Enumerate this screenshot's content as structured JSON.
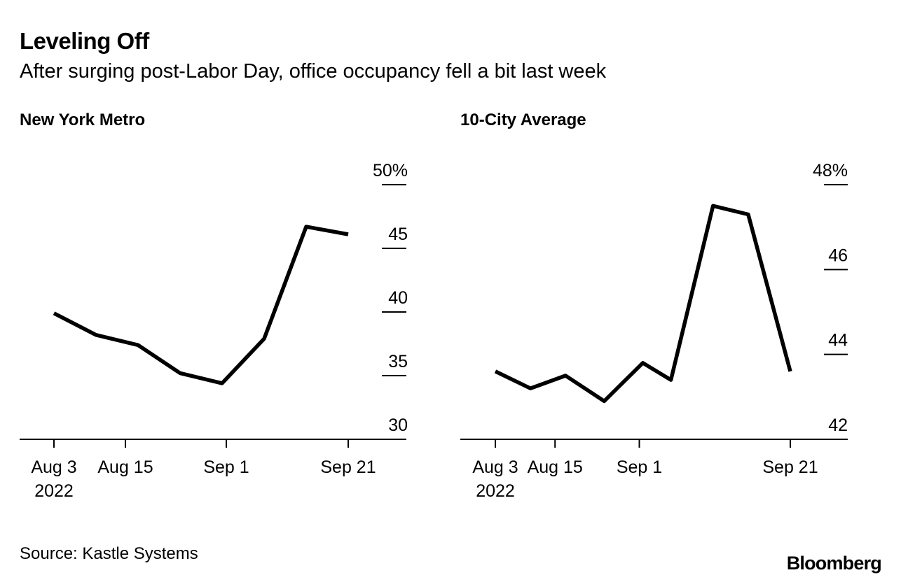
{
  "title": "Leveling Off",
  "subtitle": "After surging post-Labor Day, office occupancy fell a bit last week",
  "source": "Source: Kastle Systems",
  "brand": "Bloomberg",
  "colors": {
    "line": "#000000",
    "background": "#ffffff"
  },
  "chart_data": [
    {
      "type": "line",
      "title": "New York Metro",
      "ylabel": "%",
      "ylim": [
        30,
        50
      ],
      "yticks": [
        30,
        35,
        40,
        45,
        50
      ],
      "ytick_labels": [
        "30",
        "35",
        "40",
        "45",
        "50%"
      ],
      "x": [
        "Aug 3",
        "Aug 10",
        "Aug 17",
        "Aug 24",
        "Aug 31",
        "Sep 7",
        "Sep 14",
        "Sep 21"
      ],
      "x_day_index": [
        0,
        5,
        10,
        15,
        20,
        25,
        30,
        35
      ],
      "xticks": [
        {
          "day_index": 0,
          "label": "Aug 3",
          "sublabel": "2022"
        },
        {
          "day_index": 8.5,
          "label": "Aug 15",
          "sublabel": ""
        },
        {
          "day_index": 20.5,
          "label": "Sep 1",
          "sublabel": ""
        },
        {
          "day_index": 35,
          "label": "Sep 21",
          "sublabel": ""
        }
      ],
      "values": [
        39.9,
        38.2,
        37.4,
        35.2,
        34.4,
        37.9,
        46.7,
        46.1
      ]
    },
    {
      "type": "line",
      "title": "10-City Average",
      "ylabel": "%",
      "ylim": [
        42,
        48
      ],
      "yticks": [
        42,
        44,
        46,
        48
      ],
      "ytick_labels": [
        "42",
        "44",
        "46",
        "48%"
      ],
      "x": [
        "Aug 3",
        "Aug 8",
        "Aug 13",
        "Aug 19",
        "Aug 24",
        "Aug 29",
        "Sep 6",
        "Sep 13",
        "Sep 21"
      ],
      "x_day_index": [
        0,
        5,
        10,
        15.5,
        21,
        25,
        31,
        36,
        42
      ],
      "xticks": [
        {
          "day_index": 0,
          "label": "Aug 3",
          "sublabel": "2022"
        },
        {
          "day_index": 8.5,
          "label": "Aug 15",
          "sublabel": ""
        },
        {
          "day_index": 20.5,
          "label": "Sep 1",
          "sublabel": ""
        },
        {
          "day_index": 42,
          "label": "Sep 21",
          "sublabel": ""
        }
      ],
      "values": [
        43.6,
        43.2,
        43.5,
        42.9,
        43.8,
        43.4,
        47.5,
        47.3,
        43.6
      ]
    }
  ]
}
